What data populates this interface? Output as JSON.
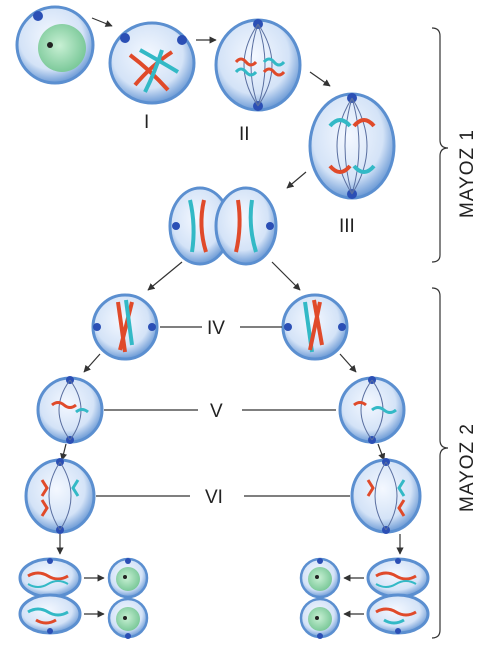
{
  "labels": {
    "stage_1": "I",
    "stage_2": "II",
    "stage_3": "III",
    "stage_4": "IV",
    "stage_5": "V",
    "stage_6": "VI",
    "meiosis_1": "MAYOZ 1",
    "meiosis_2": "MAYOZ 2"
  },
  "colors": {
    "cell_outer": "#5b8fd0",
    "cell_inner": "#e6eefb",
    "cell_rim": "#bcd2ef",
    "nucleus": "#8fd3a8",
    "chromosome_red": "#e04a2a",
    "chromosome_cyan": "#33b9c6",
    "centrosome": "#2b4fb5",
    "line": "#333333"
  }
}
